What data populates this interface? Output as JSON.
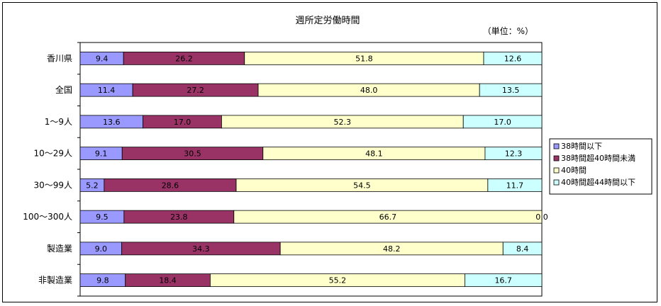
{
  "chart_data": {
    "type": "bar",
    "orientation": "horizontal",
    "stacked": "percent",
    "title": "週所定労働時間",
    "unit_note": "（単位：%）",
    "categories": [
      "香川県",
      "全国",
      "1～9人",
      "10～29人",
      "30～99人",
      "100～300人",
      "製造業",
      "非製造業"
    ],
    "value_labels": [
      [
        "9.4",
        "11.4",
        "13.6",
        "9.1",
        "5.2",
        "9.5",
        "9.0",
        "9.8"
      ],
      [
        "26.2",
        "27.2",
        "17.0",
        "30.5",
        "28.6",
        "23.8",
        "34.3",
        "18.4"
      ],
      [
        "51.8",
        "48.0",
        "52.3",
        "48.1",
        "54.5",
        "66.7",
        "48.2",
        "55.2"
      ],
      [
        "12.6",
        "13.5",
        "17.0",
        "12.3",
        "11.7",
        "0.0",
        "8.4",
        "16.7"
      ]
    ],
    "series": [
      {
        "name": "38時間以下",
        "color": "#9999ff",
        "values": [
          9.4,
          11.4,
          13.6,
          9.1,
          5.2,
          9.5,
          9.0,
          9.8
        ]
      },
      {
        "name": "38時間超40時間未満",
        "color": "#993366",
        "values": [
          26.2,
          27.2,
          17.0,
          30.5,
          28.6,
          23.8,
          34.3,
          18.4
        ]
      },
      {
        "name": "40時間",
        "color": "#ffffcc",
        "values": [
          51.8,
          48.0,
          52.3,
          48.1,
          54.5,
          66.7,
          48.2,
          55.2
        ]
      },
      {
        "name": "40時間超44時間以下",
        "color": "#ccffff",
        "values": [
          12.6,
          13.5,
          17.0,
          12.3,
          11.7,
          0.0,
          8.4,
          16.7
        ]
      }
    ],
    "xlim": [
      0,
      100
    ],
    "grid": false,
    "legend_position": "right"
  }
}
